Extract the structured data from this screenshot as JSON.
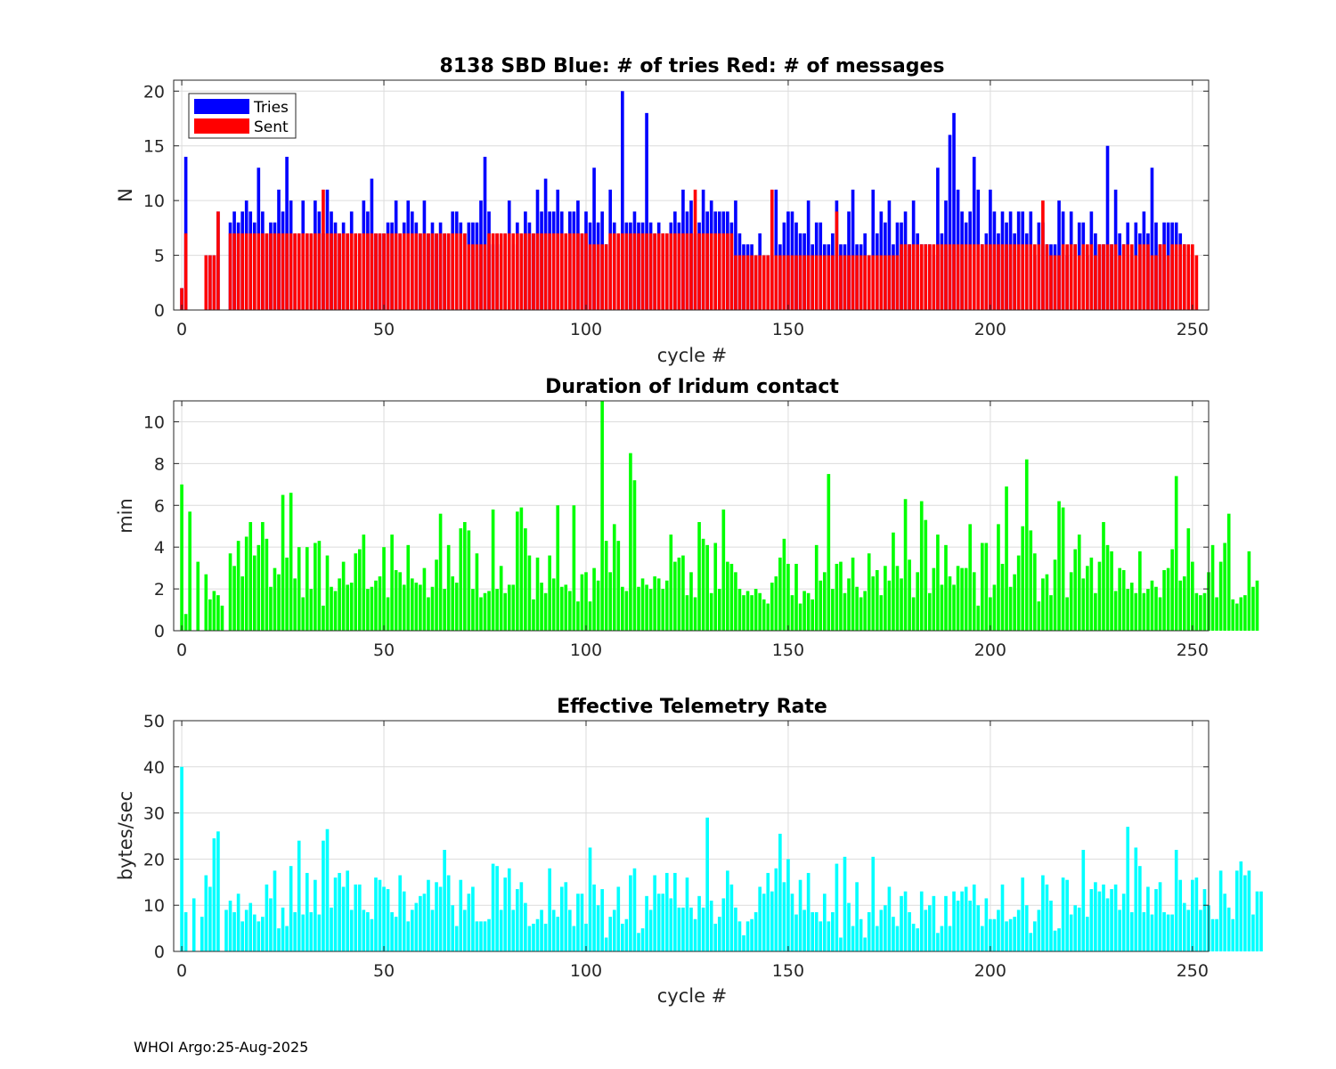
{
  "footer": "WHOI Argo:25-Aug-2025",
  "colors": {
    "tries": "#0000ff",
    "sent": "#ff0000",
    "duration": "#00ff00",
    "rate": "#00ffff"
  },
  "chart_data": [
    {
      "type": "bar",
      "title": "8138 SBD  Blue: # of tries   Red: # of messages",
      "xlabel": "cycle #",
      "ylabel": "N",
      "xlim": [
        -2,
        254
      ],
      "ylim": [
        0,
        21
      ],
      "xticks": [
        0,
        50,
        100,
        150,
        200,
        250
      ],
      "yticks": [
        0,
        5,
        10,
        15,
        20
      ],
      "legend": {
        "position": "top-left",
        "entries": [
          "Tries",
          "Sent"
        ]
      },
      "series": [
        {
          "name": "Tries",
          "color": "#0000ff",
          "values": [
            2,
            14,
            0,
            0,
            0,
            0,
            5,
            5,
            5,
            9,
            0,
            0,
            8,
            9,
            8,
            9,
            10,
            9,
            8,
            13,
            9,
            7,
            8,
            8,
            11,
            9,
            14,
            10,
            7,
            7,
            10,
            7,
            7,
            10,
            9,
            7,
            11,
            9,
            8,
            7,
            8,
            7,
            9,
            7,
            7,
            10,
            9,
            12,
            7,
            7,
            7,
            8,
            8,
            10,
            7,
            8,
            10,
            9,
            8,
            7,
            10,
            7,
            8,
            7,
            8,
            7,
            7,
            9,
            9,
            8,
            7,
            8,
            8,
            8,
            10,
            14,
            9,
            6,
            7,
            6,
            7,
            10,
            6,
            8,
            7,
            9,
            8,
            7,
            11,
            9,
            12,
            9,
            9,
            11,
            9,
            7,
            9,
            9,
            10,
            7,
            9,
            8,
            13,
            8,
            9,
            6,
            11,
            8,
            7,
            20,
            8,
            8,
            9,
            8,
            8,
            18,
            8,
            7,
            8,
            7,
            7,
            8,
            9,
            8,
            11,
            9,
            10,
            7,
            8,
            11,
            9,
            10,
            9,
            9,
            9,
            9,
            8,
            10,
            7,
            6,
            6,
            6,
            5,
            7,
            5,
            5,
            5,
            11,
            6,
            8,
            9,
            9,
            8,
            7,
            7,
            10,
            6,
            8,
            8,
            6,
            6,
            7,
            10,
            6,
            6,
            9,
            11,
            6,
            6,
            7,
            5,
            11,
            7,
            9,
            8,
            10,
            6,
            8,
            8,
            9,
            6,
            10,
            7,
            6,
            6,
            6,
            5,
            13,
            7,
            10,
            16,
            18,
            11,
            9,
            8,
            9,
            14,
            11,
            6,
            7,
            11,
            9,
            7,
            9,
            8,
            9,
            7,
            9,
            9,
            7,
            9,
            5,
            8,
            8,
            6,
            6,
            6,
            10,
            9,
            5,
            9,
            6,
            8,
            8,
            5,
            9,
            7,
            6,
            6,
            15,
            6,
            11,
            7,
            6,
            8,
            5,
            8,
            7,
            9,
            7,
            13,
            8,
            6,
            8,
            8,
            8,
            8,
            7,
            6,
            5
          ]
        },
        {
          "name": "Sent",
          "color": "#ff0000",
          "values": [
            2,
            7,
            0,
            0,
            0,
            0,
            5,
            5,
            5,
            9,
            0,
            0,
            7,
            7,
            7,
            7,
            7,
            7,
            7,
            7,
            7,
            7,
            7,
            7,
            7,
            7,
            7,
            7,
            7,
            7,
            7,
            7,
            7,
            7,
            7,
            11,
            7,
            7,
            7,
            7,
            7,
            7,
            7,
            7,
            7,
            7,
            7,
            7,
            7,
            7,
            7,
            7,
            7,
            7,
            7,
            7,
            7,
            7,
            7,
            7,
            7,
            7,
            7,
            7,
            7,
            7,
            7,
            7,
            7,
            7,
            7,
            6,
            6,
            6,
            6,
            6,
            7,
            7,
            7,
            7,
            7,
            7,
            7,
            7,
            7,
            7,
            7,
            7,
            7,
            7,
            7,
            7,
            7,
            7,
            7,
            7,
            7,
            7,
            7,
            7,
            7,
            6,
            6,
            6,
            6,
            6,
            7,
            7,
            7,
            7,
            7,
            7,
            7,
            7,
            7,
            7,
            7,
            7,
            7,
            7,
            7,
            7,
            7,
            7,
            7,
            7,
            7,
            11,
            7,
            7,
            7,
            7,
            7,
            7,
            7,
            7,
            7,
            5,
            5,
            5,
            5,
            5,
            5,
            5,
            5,
            5,
            11,
            5,
            5,
            5,
            5,
            5,
            5,
            5,
            5,
            5,
            5,
            5,
            5,
            5,
            5,
            5,
            9,
            5,
            5,
            5,
            5,
            5,
            5,
            5,
            5,
            5,
            5,
            5,
            5,
            5,
            5,
            5,
            6,
            6,
            6,
            6,
            6,
            6,
            6,
            6,
            6,
            6,
            6,
            6,
            6,
            6,
            6,
            6,
            6,
            6,
            6,
            6,
            6,
            6,
            6,
            6,
            6,
            6,
            6,
            6,
            6,
            6,
            6,
            6,
            6,
            6,
            6,
            10,
            6,
            5,
            5,
            5,
            6,
            6,
            6,
            6,
            5,
            6,
            6,
            6,
            5,
            6,
            6,
            6,
            6,
            6,
            5,
            6,
            6,
            6,
            5,
            6,
            6,
            6,
            5,
            5,
            6,
            6,
            5,
            6,
            6,
            6,
            6,
            6,
            6,
            5
          ]
        }
      ]
    },
    {
      "type": "bar",
      "title": "Duration of Iridum contact",
      "xlabel": "",
      "ylabel": "min",
      "xlim": [
        -2,
        254
      ],
      "ylim": [
        0,
        11
      ],
      "xticks": [
        0,
        50,
        100,
        150,
        200,
        250
      ],
      "yticks": [
        0,
        2,
        4,
        6,
        8,
        10
      ],
      "color": "#00ff00",
      "values": [
        7.0,
        0.8,
        5.7,
        0,
        3.3,
        0,
        2.7,
        1.5,
        1.9,
        1.7,
        1.2,
        0,
        3.7,
        3.1,
        4.3,
        2.6,
        4.5,
        5.2,
        3.6,
        4.1,
        5.2,
        4.4,
        2.1,
        3.0,
        2.7,
        6.5,
        3.5,
        6.6,
        2.5,
        4.0,
        1.6,
        4.0,
        2.0,
        4.2,
        4.3,
        1.2,
        3.6,
        2.1,
        1.9,
        2.5,
        3.3,
        2.2,
        2.3,
        3.7,
        3.9,
        4.6,
        2.0,
        2.1,
        2.4,
        2.6,
        4.0,
        1.6,
        4.6,
        2.9,
        2.8,
        2.2,
        4.1,
        2.5,
        2.3,
        2.2,
        3.0,
        1.6,
        2.1,
        3.4,
        5.6,
        2.0,
        4.1,
        2.6,
        2.3,
        4.9,
        5.2,
        4.8,
        2.0,
        3.7,
        1.6,
        1.8,
        1.9,
        5.8,
        2.0,
        3.1,
        1.8,
        2.2,
        2.2,
        5.7,
        5.9,
        4.9,
        3.6,
        1.5,
        3.5,
        2.3,
        1.8,
        3.6,
        2.5,
        6.0,
        2.1,
        2.2,
        1.9,
        6.0,
        1.4,
        2.7,
        2.8,
        1.4,
        3.0,
        2.4,
        11.0,
        4.3,
        2.8,
        5.1,
        4.3,
        2.1,
        1.9,
        8.5,
        7.2,
        2.1,
        2.5,
        2.2,
        2.0,
        2.6,
        2.5,
        2.0,
        2.4,
        4.6,
        3.3,
        3.5,
        3.6,
        1.7,
        2.8,
        1.6,
        5.2,
        4.4,
        4.1,
        1.8,
        4.2,
        2.0,
        5.8,
        3.3,
        3.2,
        2.8,
        2.0,
        1.7,
        1.9,
        1.7,
        2.0,
        1.8,
        1.5,
        1.3,
        2.3,
        2.6,
        3.5,
        4.4,
        3.2,
        1.7,
        3.2,
        1.3,
        1.9,
        1.8,
        1.5,
        4.1,
        2.4,
        2.8,
        7.5,
        2.0,
        3.2,
        3.3,
        1.8,
        2.5,
        3.5,
        2.1,
        1.6,
        1.9,
        3.7,
        2.6,
        2.9,
        1.7,
        3.1,
        2.4,
        4.7,
        3.1,
        2.5,
        6.3,
        3.4,
        1.6,
        2.8,
        6.2,
        5.3,
        1.8,
        3.0,
        4.6,
        2.2,
        4.1,
        2.6,
        2.2,
        3.1,
        3.0,
        3.0,
        5.1,
        2.8,
        1.2,
        4.2,
        4.2,
        1.6,
        2.2,
        5.1,
        3.2,
        6.9,
        2.1,
        2.7,
        3.6,
        5.0,
        8.2,
        4.8,
        3.7,
        1.4,
        2.5,
        2.7,
        1.7,
        3.4,
        6.2,
        5.9,
        1.6,
        2.8,
        3.9,
        4.6,
        2.5,
        3.1,
        3.5,
        1.8,
        3.3,
        5.2,
        4.1,
        3.8,
        1.9,
        3.0,
        2.9,
        2.0,
        2.3,
        1.8,
        3.8,
        1.8,
        2.0,
        2.4,
        2.1,
        1.6,
        2.9,
        3.0,
        3.9,
        7.4,
        2.4,
        2.6,
        4.9,
        3.3,
        1.8,
        1.7,
        1.8,
        2.8,
        4.1,
        1.6,
        3.3,
        4.2,
        5.6,
        1.5,
        1.3,
        1.6,
        1.7,
        3.8,
        2.1,
        2.4
      ]
    },
    {
      "type": "bar",
      "title": "Effective Telemetry Rate",
      "xlabel": "cycle #",
      "ylabel": "bytes/sec",
      "xlim": [
        -2,
        254
      ],
      "ylim": [
        0,
        50
      ],
      "xticks": [
        0,
        50,
        100,
        150,
        200,
        250
      ],
      "yticks": [
        0,
        10,
        20,
        30,
        40,
        50
      ],
      "color": "#00ffff",
      "values": [
        40,
        8.5,
        0,
        11.5,
        0,
        7.5,
        16.5,
        14,
        24.5,
        26,
        0,
        9,
        11,
        8.5,
        12.5,
        6.5,
        9,
        10.5,
        8,
        6.5,
        7.5,
        14.5,
        11.5,
        17.5,
        5,
        9.5,
        5.5,
        18.5,
        8.5,
        24,
        8,
        17,
        8.5,
        15.5,
        8,
        24,
        26.5,
        9.5,
        16,
        17,
        14,
        17.5,
        9,
        14.5,
        14.5,
        9,
        8.5,
        7,
        16,
        15.5,
        14,
        13.5,
        8.5,
        7.5,
        16.5,
        13,
        6.5,
        9,
        10.5,
        12,
        12.5,
        15.5,
        9,
        15,
        14,
        22,
        16.5,
        10,
        5.5,
        15.5,
        9,
        12.5,
        14,
        6.5,
        6.5,
        6.5,
        7,
        19,
        18.5,
        9,
        16,
        18,
        9,
        13.5,
        15,
        10.5,
        5.5,
        6,
        7,
        9,
        6,
        18,
        9,
        7.5,
        14,
        15,
        9,
        5.5,
        12.5,
        12.5,
        6,
        22.5,
        14.5,
        10,
        13.5,
        3,
        7.5,
        9,
        14,
        6,
        7,
        16.5,
        18,
        4,
        5,
        12,
        9,
        16.5,
        12.5,
        12.5,
        17,
        11.5,
        17,
        9.5,
        9.5,
        16,
        9.5,
        7,
        12,
        9.5,
        29,
        11,
        6,
        7.5,
        11.5,
        17.5,
        14.5,
        9.5,
        6.5,
        3.5,
        6.5,
        7,
        8.5,
        14,
        12.5,
        17,
        13,
        18,
        25.5,
        15,
        20,
        12.5,
        8,
        15.5,
        9,
        17,
        8.5,
        8.5,
        6.5,
        12.5,
        6.5,
        8.5,
        19,
        3,
        20.5,
        10.5,
        5.5,
        15,
        7,
        3,
        8.5,
        20.5,
        5.5,
        9,
        10,
        14,
        7.5,
        5.5,
        12,
        13,
        8.5,
        6,
        5,
        13,
        9,
        10,
        12,
        4,
        5.5,
        12,
        5.5,
        13,
        11,
        13,
        14,
        11,
        14.5,
        10,
        5.5,
        11.5,
        7,
        7,
        9,
        14.5,
        6.5,
        7,
        7.5,
        9,
        16,
        10,
        4,
        6.5,
        9,
        16.5,
        14.5,
        11,
        4.5,
        5,
        16,
        15.5,
        8,
        10,
        9.5,
        22,
        7.5,
        13.5,
        15,
        13,
        14.5,
        11.5,
        13.5,
        14.5,
        9,
        12.5,
        27,
        8.5,
        22.5,
        18.5,
        8.5,
        14,
        8,
        13.5,
        15,
        8.5,
        8,
        8,
        22,
        15.5,
        10.5,
        9,
        15.5,
        16,
        9,
        13.5,
        10,
        7,
        7,
        17.5,
        12.5,
        9.5,
        7,
        17.5,
        19.5,
        16.5,
        17.5,
        8,
        13,
        13
      ]
    }
  ]
}
